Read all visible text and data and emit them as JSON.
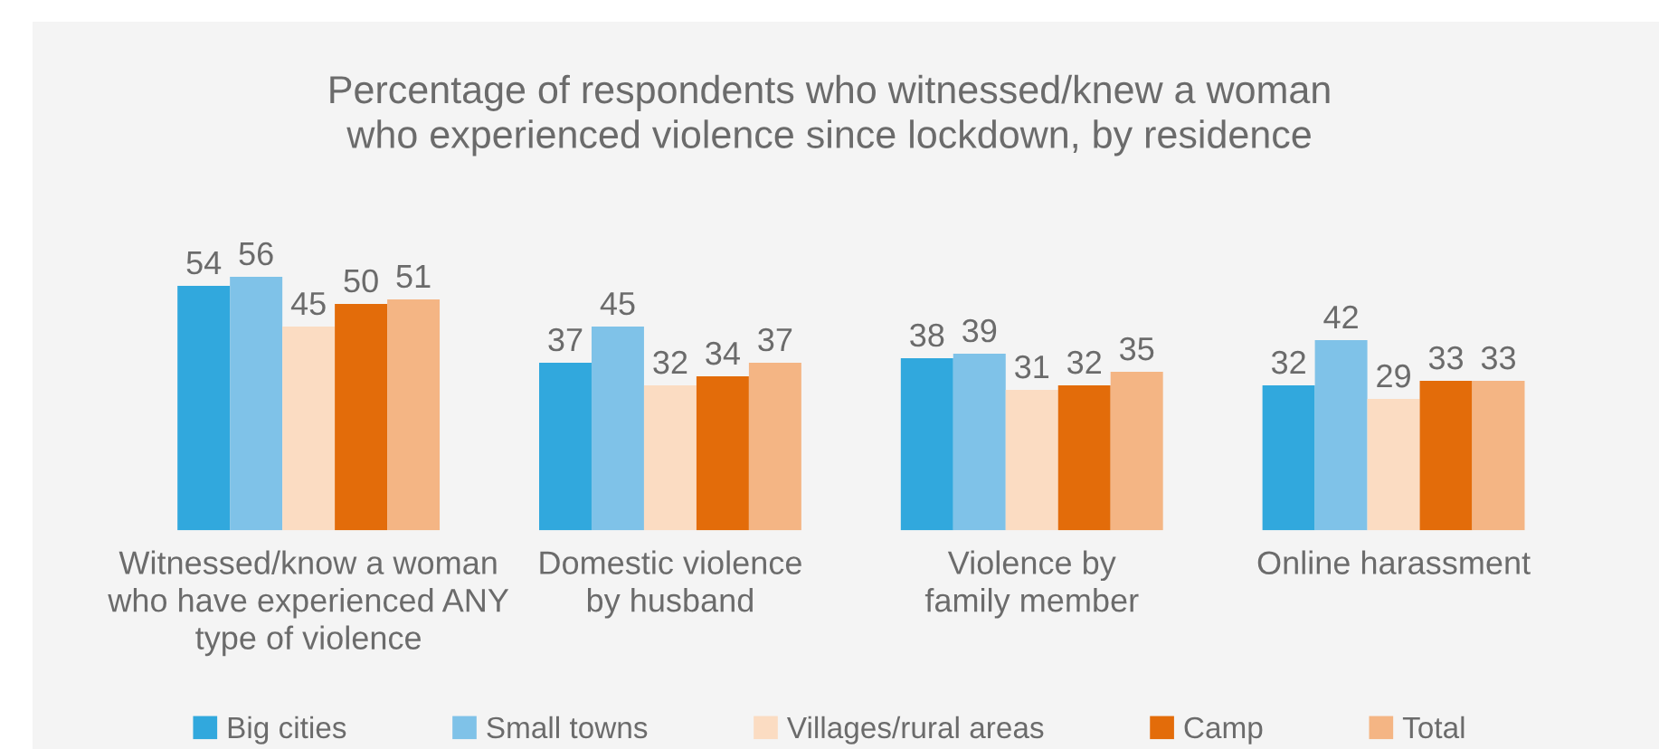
{
  "chart_data": {
    "type": "bar",
    "title": "Percentage of respondents who witnessed/knew a woman\nwho experienced violence since lockdown, by residence",
    "categories": [
      "Witnessed/know a woman\nwho have experienced ANY\ntype of violence",
      "Domestic violence\nby husband",
      "Violence by\nfamily member",
      "Online harassment"
    ],
    "series": [
      {
        "name": "Big cities",
        "color": "#31a8dd",
        "values": [
          54,
          37,
          38,
          32
        ]
      },
      {
        "name": "Small towns",
        "color": "#7fc2e8",
        "values": [
          56,
          45,
          39,
          42
        ]
      },
      {
        "name": "Villages/rural areas",
        "color": "#fbdcc2",
        "values": [
          45,
          32,
          31,
          29
        ]
      },
      {
        "name": "Camp",
        "color": "#e36c0a",
        "values": [
          50,
          34,
          32,
          33
        ]
      },
      {
        "name": "Total",
        "color": "#f4b584",
        "values": [
          51,
          37,
          35,
          33
        ]
      }
    ],
    "data_labels": true,
    "legend": "bottom",
    "grid": false
  }
}
